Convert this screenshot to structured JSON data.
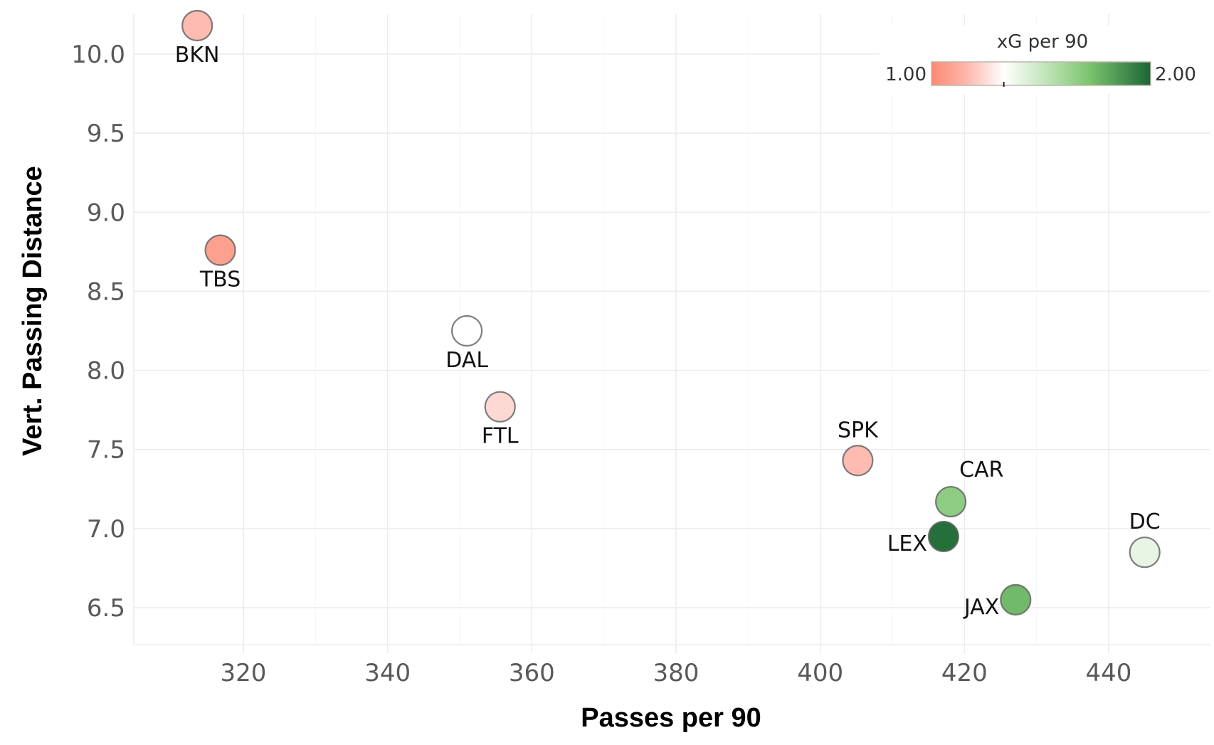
{
  "chart_data": {
    "type": "scatter",
    "title": "",
    "xlabel": "Passes per 90",
    "ylabel": "Vert. Passing Distance",
    "xlim": [
      305,
      452
    ],
    "ylim": [
      6.25,
      10.35
    ],
    "x_ticks": [
      320,
      340,
      360,
      380,
      400,
      420,
      440
    ],
    "x_tick_labels": [
      "320",
      "340",
      "360",
      "380",
      "400",
      "420",
      "440"
    ],
    "y_ticks": [
      6.5,
      7.0,
      7.5,
      8.0,
      8.5,
      9.0,
      9.5,
      10.0
    ],
    "y_tick_labels": [
      "6.5",
      "7.0",
      "7.5",
      "8.0",
      "8.5",
      "9.0",
      "9.5",
      "10.0"
    ],
    "grid": true,
    "points": [
      {
        "label": "BKN",
        "x": 313.6,
        "y": 10.18,
        "xg": 1.17,
        "label_pos": "below"
      },
      {
        "label": "TBS",
        "x": 316.8,
        "y": 8.76,
        "xg": 1.08,
        "label_pos": "below"
      },
      {
        "label": "DAL",
        "x": 351.0,
        "y": 8.25,
        "xg": 1.33,
        "label_pos": "below"
      },
      {
        "label": "FTL",
        "x": 355.6,
        "y": 7.77,
        "xg": 1.24,
        "label_pos": "below"
      },
      {
        "label": "SPK",
        "x": 405.2,
        "y": 7.43,
        "xg": 1.17,
        "label_pos": "above"
      },
      {
        "label": "CAR",
        "x": 418.1,
        "y": 7.17,
        "xg": 1.67,
        "label_pos": "above-right"
      },
      {
        "label": "LEX",
        "x": 417.1,
        "y": 6.95,
        "xg": 1.97,
        "label_pos": "left"
      },
      {
        "label": "JAX",
        "x": 427.1,
        "y": 6.55,
        "xg": 1.75,
        "label_pos": "left"
      },
      {
        "label": "DC",
        "x": 445.0,
        "y": 6.85,
        "xg": 1.4,
        "label_pos": "above"
      }
    ],
    "color_scale": {
      "title": "xG per 90",
      "min": 1.0,
      "mid": 1.33,
      "max": 2.0,
      "min_label": "1.00",
      "max_label": "2.00",
      "low_color": "#fc8a72",
      "mid_color": "#ffffff",
      "high_color": "#1a6634",
      "placement": "top-right"
    }
  }
}
